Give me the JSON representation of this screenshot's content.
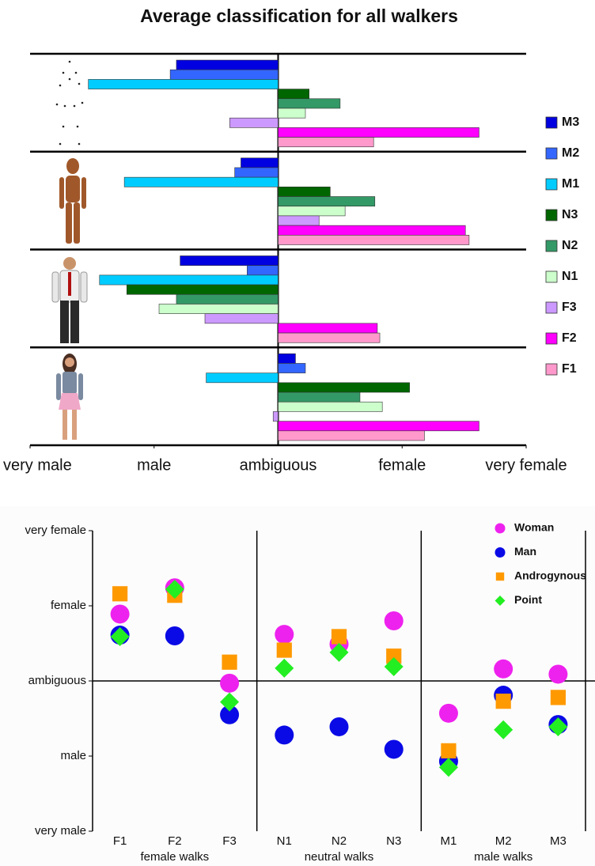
{
  "chart_data": [
    {
      "type": "bar",
      "orientation": "horizontal",
      "title": "Average classification for all walkers",
      "categories": [
        null,
        null,
        null,
        null
      ],
      "xlim": [
        -2,
        2
      ],
      "xticks": [
        {
          "value": -2,
          "label": "very male"
        },
        {
          "value": -1,
          "label": "male"
        },
        {
          "value": 0,
          "label": "ambiguous"
        },
        {
          "value": 1,
          "label": "female"
        },
        {
          "value": 2,
          "label": "very female"
        }
      ],
      "series": [
        {
          "name": "M3",
          "color": "#0000e0",
          "values": [
            -0.82,
            -0.3,
            -0.79,
            0.14
          ]
        },
        {
          "name": "M2",
          "color": "#3366ff",
          "values": [
            -0.87,
            -0.35,
            -0.25,
            0.22
          ]
        },
        {
          "name": "M1",
          "color": "#00ccff",
          "values": [
            -1.53,
            -1.24,
            -1.44,
            -0.58
          ]
        },
        {
          "name": "N3",
          "color": "#006600",
          "values": [
            0.25,
            0.42,
            -1.22,
            1.06
          ]
        },
        {
          "name": "N2",
          "color": "#339966",
          "values": [
            0.5,
            0.78,
            -0.82,
            0.66
          ]
        },
        {
          "name": "N1",
          "color": "#ccffcc",
          "values": [
            0.22,
            0.54,
            -0.96,
            0.84
          ]
        },
        {
          "name": "F3",
          "color": "#cc99ff",
          "values": [
            -0.39,
            0.33,
            -0.59,
            -0.04
          ]
        },
        {
          "name": "F2",
          "color": "#ff00ff",
          "values": [
            1.62,
            1.51,
            0.8,
            1.62
          ]
        },
        {
          "name": "F1",
          "color": "#ff99cc",
          "values": [
            0.77,
            1.54,
            0.82,
            1.18
          ]
        }
      ]
    },
    {
      "type": "scatter",
      "categories": [
        "F1",
        "F2",
        "F3",
        "N1",
        "N2",
        "N3",
        "M1",
        "M2",
        "M3"
      ],
      "groups": [
        "female walks",
        "neutral walks",
        "male walks"
      ],
      "ylim": [
        -2,
        2
      ],
      "yticks": [
        {
          "value": -2,
          "label": "very male"
        },
        {
          "value": -1,
          "label": "male"
        },
        {
          "value": 0,
          "label": "ambiguous"
        },
        {
          "value": 1,
          "label": "female"
        },
        {
          "value": 2,
          "label": "very female"
        }
      ],
      "series": [
        {
          "name": "Woman",
          "color": "#ee22ee",
          "marker": "circle",
          "values": [
            0.89,
            1.24,
            -0.03,
            0.62,
            0.49,
            0.8,
            -0.43,
            0.16,
            0.09
          ]
        },
        {
          "name": "Man",
          "color": "#0a0ae6",
          "marker": "circle",
          "values": [
            0.61,
            0.6,
            -0.45,
            -0.72,
            -0.61,
            -0.91,
            -1.07,
            -0.19,
            -0.58
          ]
        },
        {
          "name": "Androgynous",
          "color": "#ff9900",
          "marker": "square",
          "values": [
            1.16,
            1.14,
            0.25,
            0.41,
            0.59,
            0.33,
            -0.93,
            -0.27,
            -0.22
          ]
        },
        {
          "name": "Point",
          "color": "#22ee22",
          "marker": "diamond",
          "values": [
            0.59,
            1.22,
            -0.28,
            0.17,
            0.38,
            0.19,
            -1.15,
            -0.65,
            -0.61
          ]
        }
      ]
    }
  ]
}
